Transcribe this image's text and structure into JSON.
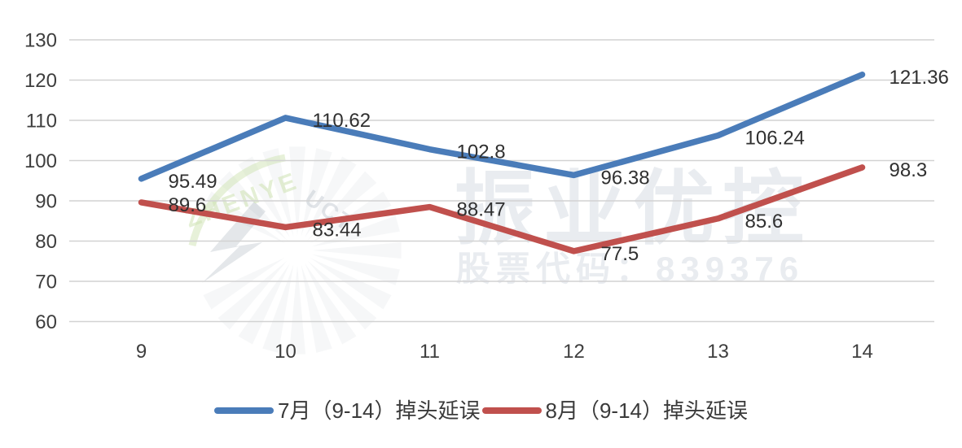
{
  "watermark": {
    "brand_text": "振业优控",
    "stock_text": "股票代码：839376",
    "logo_text_green": "ZHENYE",
    "logo_text_gray": "UCT"
  },
  "legend": [
    {
      "label": "7月（9-14）掉头延误",
      "color": "#4a7cb9"
    },
    {
      "label": "8月（9-14）掉头延误",
      "color": "#c0504d"
    }
  ],
  "chart_data": {
    "type": "line",
    "title": "",
    "xlabel": "",
    "ylabel": "",
    "categories": [
      "9",
      "10",
      "11",
      "12",
      "13",
      "14"
    ],
    "series": [
      {
        "name": "7月（9-14）掉头延误",
        "color": "#4a7cb9",
        "values": [
          95.49,
          110.62,
          102.8,
          96.38,
          106.24,
          121.36
        ]
      },
      {
        "name": "8月（9-14）掉头延误",
        "color": "#c0504d",
        "values": [
          89.6,
          83.44,
          88.47,
          77.5,
          85.6,
          98.3
        ]
      }
    ],
    "ylim": [
      60,
      130
    ],
    "ytick_step": 10,
    "grid": true,
    "data_labels": true,
    "legend_position": "bottom",
    "gridline_color": "#d2d2d2"
  }
}
